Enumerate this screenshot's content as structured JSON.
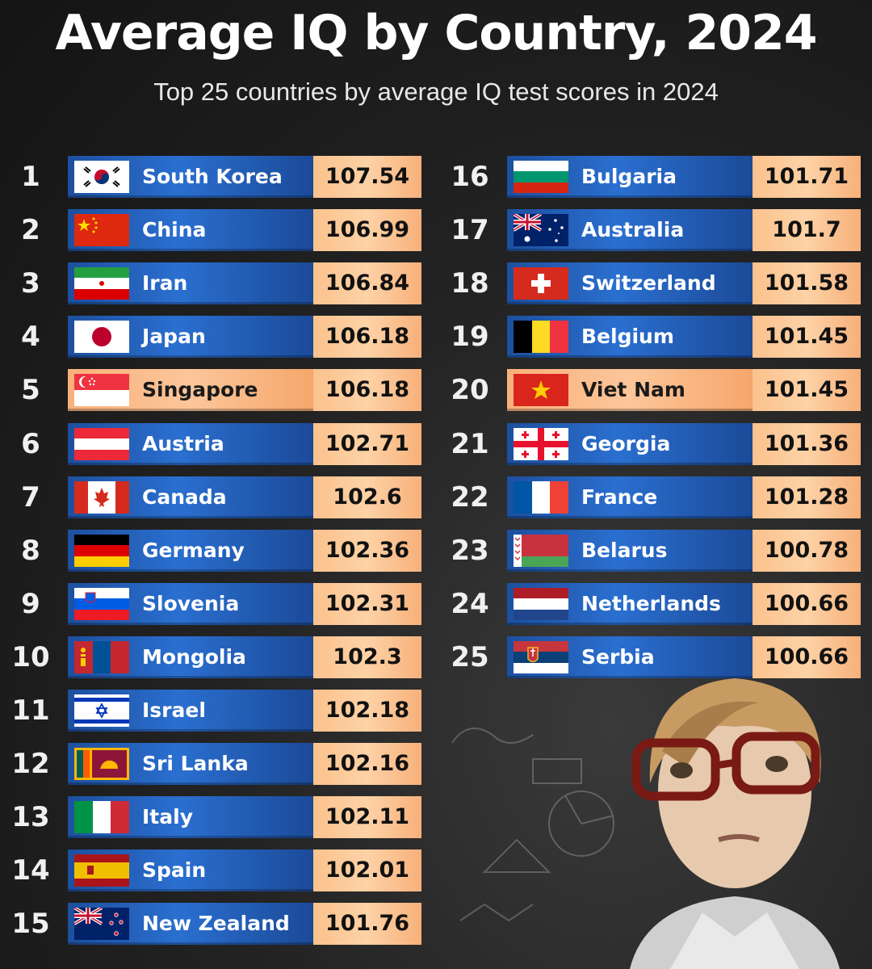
{
  "title": "Average IQ by Country, 2024",
  "subtitle": "Top 25 countries by average IQ test scores in 2024",
  "chart_data": {
    "type": "bar",
    "title": "Average IQ by Country, 2024",
    "subtitle": "Top 25 countries by average IQ test scores in 2024",
    "rows": [
      {
        "rank": "1",
        "country": "South Korea",
        "value": "107.54",
        "flag": "south-korea-flag-icon",
        "highlight": false
      },
      {
        "rank": "2",
        "country": "China",
        "value": "106.99",
        "flag": "china-flag-icon",
        "highlight": false
      },
      {
        "rank": "3",
        "country": "Iran",
        "value": "106.84",
        "flag": "iran-flag-icon",
        "highlight": false
      },
      {
        "rank": "4",
        "country": "Japan",
        "value": "106.18",
        "flag": "japan-flag-icon",
        "highlight": false
      },
      {
        "rank": "5",
        "country": "Singapore",
        "value": "106.18",
        "flag": "singapore-flag-icon",
        "highlight": true
      },
      {
        "rank": "6",
        "country": "Austria",
        "value": "102.71",
        "flag": "austria-flag-icon",
        "highlight": false
      },
      {
        "rank": "7",
        "country": "Canada",
        "value": "102.6",
        "flag": "canada-flag-icon",
        "highlight": false
      },
      {
        "rank": "8",
        "country": "Germany",
        "value": "102.36",
        "flag": "germany-flag-icon",
        "highlight": false
      },
      {
        "rank": "9",
        "country": "Slovenia",
        "value": "102.31",
        "flag": "slovenia-flag-icon",
        "highlight": false
      },
      {
        "rank": "10",
        "country": "Mongolia",
        "value": "102.3",
        "flag": "mongolia-flag-icon",
        "highlight": false
      },
      {
        "rank": "11",
        "country": "Israel",
        "value": "102.18",
        "flag": "israel-flag-icon",
        "highlight": false
      },
      {
        "rank": "12",
        "country": "Sri Lanka",
        "value": "102.16",
        "flag": "sri-lanka-flag-icon",
        "highlight": false
      },
      {
        "rank": "13",
        "country": "Italy",
        "value": "102.11",
        "flag": "italy-flag-icon",
        "highlight": false
      },
      {
        "rank": "14",
        "country": "Spain",
        "value": "102.01",
        "flag": "spain-flag-icon",
        "highlight": false
      },
      {
        "rank": "15",
        "country": "New Zealand",
        "value": "101.76",
        "flag": "new-zealand-flag-icon",
        "highlight": false
      },
      {
        "rank": "16",
        "country": "Bulgaria",
        "value": "101.71",
        "flag": "bulgaria-flag-icon",
        "highlight": false
      },
      {
        "rank": "17",
        "country": "Australia",
        "value": "101.7",
        "flag": "australia-flag-icon",
        "highlight": false
      },
      {
        "rank": "18",
        "country": "Switzerland",
        "value": "101.58",
        "flag": "switzerland-flag-icon",
        "highlight": false
      },
      {
        "rank": "19",
        "country": "Belgium",
        "value": "101.45",
        "flag": "belgium-flag-icon",
        "highlight": false
      },
      {
        "rank": "20",
        "country": "Viet Nam",
        "value": "101.45",
        "flag": "vietnam-flag-icon",
        "highlight": true
      },
      {
        "rank": "21",
        "country": "Georgia",
        "value": "101.36",
        "flag": "georgia-flag-icon",
        "highlight": false
      },
      {
        "rank": "22",
        "country": "France",
        "value": "101.28",
        "flag": "france-flag-icon",
        "highlight": false
      },
      {
        "rank": "23",
        "country": "Belarus",
        "value": "100.78",
        "flag": "belarus-flag-icon",
        "highlight": false
      },
      {
        "rank": "24",
        "country": "Netherlands",
        "value": "100.66",
        "flag": "netherlands-flag-icon",
        "highlight": false
      },
      {
        "rank": "25",
        "country": "Serbia",
        "value": "100.66",
        "flag": "serbia-flag-icon",
        "highlight": false
      }
    ]
  },
  "colors": {
    "background": "#1c1c1c",
    "bar_blue": "#2a6fd0",
    "bar_highlight": "#fcc69a",
    "value_box": "#fdd2a6"
  }
}
